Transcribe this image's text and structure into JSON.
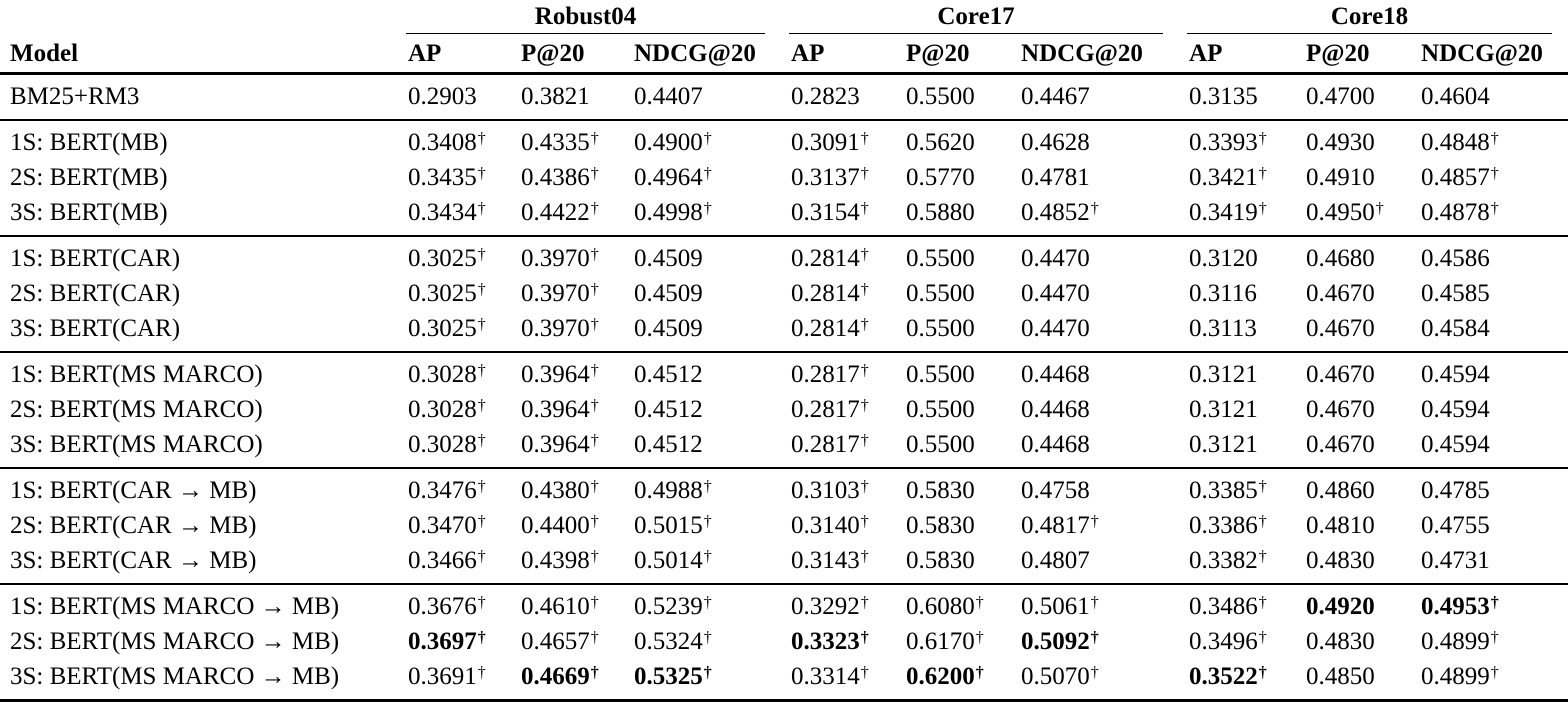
{
  "colors": {
    "background": "#ffffff",
    "text": "#000000",
    "rule": "#000000"
  },
  "table": {
    "model_header": "Model",
    "dagger_symbol": "†",
    "groups": [
      {
        "label": "Robust04"
      },
      {
        "label": "Core17"
      },
      {
        "label": "Core18"
      }
    ],
    "metric_headers": [
      "AP",
      "P@20",
      "NDCG@20"
    ],
    "cell_format": "[value, has_dagger, is_bold]",
    "sections": [
      {
        "rows": [
          {
            "model": "BM25+RM3",
            "cells": [
              [
                "0.2903",
                0,
                0
              ],
              [
                "0.3821",
                0,
                0
              ],
              [
                "0.4407",
                0,
                0
              ],
              [
                "0.2823",
                0,
                0
              ],
              [
                "0.5500",
                0,
                0
              ],
              [
                "0.4467",
                0,
                0
              ],
              [
                "0.3135",
                0,
                0
              ],
              [
                "0.4700",
                0,
                0
              ],
              [
                "0.4604",
                0,
                0
              ]
            ]
          }
        ]
      },
      {
        "rows": [
          {
            "model": "1S: BERT(MB)",
            "cells": [
              [
                "0.3408",
                1,
                0
              ],
              [
                "0.4335",
                1,
                0
              ],
              [
                "0.4900",
                1,
                0
              ],
              [
                "0.3091",
                1,
                0
              ],
              [
                "0.5620",
                0,
                0
              ],
              [
                "0.4628",
                0,
                0
              ],
              [
                "0.3393",
                1,
                0
              ],
              [
                "0.4930",
                0,
                0
              ],
              [
                "0.4848",
                1,
                0
              ]
            ]
          },
          {
            "model": "2S: BERT(MB)",
            "cells": [
              [
                "0.3435",
                1,
                0
              ],
              [
                "0.4386",
                1,
                0
              ],
              [
                "0.4964",
                1,
                0
              ],
              [
                "0.3137",
                1,
                0
              ],
              [
                "0.5770",
                0,
                0
              ],
              [
                "0.4781",
                0,
                0
              ],
              [
                "0.3421",
                1,
                0
              ],
              [
                "0.4910",
                0,
                0
              ],
              [
                "0.4857",
                1,
                0
              ]
            ]
          },
          {
            "model": "3S: BERT(MB)",
            "cells": [
              [
                "0.3434",
                1,
                0
              ],
              [
                "0.4422",
                1,
                0
              ],
              [
                "0.4998",
                1,
                0
              ],
              [
                "0.3154",
                1,
                0
              ],
              [
                "0.5880",
                0,
                0
              ],
              [
                "0.4852",
                1,
                0
              ],
              [
                "0.3419",
                1,
                0
              ],
              [
                "0.4950",
                1,
                0
              ],
              [
                "0.4878",
                1,
                0
              ]
            ]
          }
        ]
      },
      {
        "rows": [
          {
            "model": "1S: BERT(CAR)",
            "cells": [
              [
                "0.3025",
                1,
                0
              ],
              [
                "0.3970",
                1,
                0
              ],
              [
                "0.4509",
                0,
                0
              ],
              [
                "0.2814",
                1,
                0
              ],
              [
                "0.5500",
                0,
                0
              ],
              [
                "0.4470",
                0,
                0
              ],
              [
                "0.3120",
                0,
                0
              ],
              [
                "0.4680",
                0,
                0
              ],
              [
                "0.4586",
                0,
                0
              ]
            ]
          },
          {
            "model": "2S: BERT(CAR)",
            "cells": [
              [
                "0.3025",
                1,
                0
              ],
              [
                "0.3970",
                1,
                0
              ],
              [
                "0.4509",
                0,
                0
              ],
              [
                "0.2814",
                1,
                0
              ],
              [
                "0.5500",
                0,
                0
              ],
              [
                "0.4470",
                0,
                0
              ],
              [
                "0.3116",
                0,
                0
              ],
              [
                "0.4670",
                0,
                0
              ],
              [
                "0.4585",
                0,
                0
              ]
            ]
          },
          {
            "model": "3S: BERT(CAR)",
            "cells": [
              [
                "0.3025",
                1,
                0
              ],
              [
                "0.3970",
                1,
                0
              ],
              [
                "0.4509",
                0,
                0
              ],
              [
                "0.2814",
                1,
                0
              ],
              [
                "0.5500",
                0,
                0
              ],
              [
                "0.4470",
                0,
                0
              ],
              [
                "0.3113",
                0,
                0
              ],
              [
                "0.4670",
                0,
                0
              ],
              [
                "0.4584",
                0,
                0
              ]
            ]
          }
        ]
      },
      {
        "rows": [
          {
            "model": "1S: BERT(MS MARCO)",
            "cells": [
              [
                "0.3028",
                1,
                0
              ],
              [
                "0.3964",
                1,
                0
              ],
              [
                "0.4512",
                0,
                0
              ],
              [
                "0.2817",
                1,
                0
              ],
              [
                "0.5500",
                0,
                0
              ],
              [
                "0.4468",
                0,
                0
              ],
              [
                "0.3121",
                0,
                0
              ],
              [
                "0.4670",
                0,
                0
              ],
              [
                "0.4594",
                0,
                0
              ]
            ]
          },
          {
            "model": "2S: BERT(MS MARCO)",
            "cells": [
              [
                "0.3028",
                1,
                0
              ],
              [
                "0.3964",
                1,
                0
              ],
              [
                "0.4512",
                0,
                0
              ],
              [
                "0.2817",
                1,
                0
              ],
              [
                "0.5500",
                0,
                0
              ],
              [
                "0.4468",
                0,
                0
              ],
              [
                "0.3121",
                0,
                0
              ],
              [
                "0.4670",
                0,
                0
              ],
              [
                "0.4594",
                0,
                0
              ]
            ]
          },
          {
            "model": "3S: BERT(MS MARCO)",
            "cells": [
              [
                "0.3028",
                1,
                0
              ],
              [
                "0.3964",
                1,
                0
              ],
              [
                "0.4512",
                0,
                0
              ],
              [
                "0.2817",
                1,
                0
              ],
              [
                "0.5500",
                0,
                0
              ],
              [
                "0.4468",
                0,
                0
              ],
              [
                "0.3121",
                0,
                0
              ],
              [
                "0.4670",
                0,
                0
              ],
              [
                "0.4594",
                0,
                0
              ]
            ]
          }
        ]
      },
      {
        "rows": [
          {
            "model": "1S: BERT(CAR → MB)",
            "cells": [
              [
                "0.3476",
                1,
                0
              ],
              [
                "0.4380",
                1,
                0
              ],
              [
                "0.4988",
                1,
                0
              ],
              [
                "0.3103",
                1,
                0
              ],
              [
                "0.5830",
                0,
                0
              ],
              [
                "0.4758",
                0,
                0
              ],
              [
                "0.3385",
                1,
                0
              ],
              [
                "0.4860",
                0,
                0
              ],
              [
                "0.4785",
                0,
                0
              ]
            ]
          },
          {
            "model": "2S: BERT(CAR → MB)",
            "cells": [
              [
                "0.3470",
                1,
                0
              ],
              [
                "0.4400",
                1,
                0
              ],
              [
                "0.5015",
                1,
                0
              ],
              [
                "0.3140",
                1,
                0
              ],
              [
                "0.5830",
                0,
                0
              ],
              [
                "0.4817",
                1,
                0
              ],
              [
                "0.3386",
                1,
                0
              ],
              [
                "0.4810",
                0,
                0
              ],
              [
                "0.4755",
                0,
                0
              ]
            ]
          },
          {
            "model": "3S: BERT(CAR → MB)",
            "cells": [
              [
                "0.3466",
                1,
                0
              ],
              [
                "0.4398",
                1,
                0
              ],
              [
                "0.5014",
                1,
                0
              ],
              [
                "0.3143",
                1,
                0
              ],
              [
                "0.5830",
                0,
                0
              ],
              [
                "0.4807",
                0,
                0
              ],
              [
                "0.3382",
                1,
                0
              ],
              [
                "0.4830",
                0,
                0
              ],
              [
                "0.4731",
                0,
                0
              ]
            ]
          }
        ]
      },
      {
        "rows": [
          {
            "model": "1S: BERT(MS MARCO → MB)",
            "cells": [
              [
                "0.3676",
                1,
                0
              ],
              [
                "0.4610",
                1,
                0
              ],
              [
                "0.5239",
                1,
                0
              ],
              [
                "0.3292",
                1,
                0
              ],
              [
                "0.6080",
                1,
                0
              ],
              [
                "0.5061",
                1,
                0
              ],
              [
                "0.3486",
                1,
                0
              ],
              [
                "0.4920",
                0,
                1
              ],
              [
                "0.4953",
                1,
                1
              ]
            ]
          },
          {
            "model": "2S: BERT(MS MARCO → MB)",
            "cells": [
              [
                "0.3697",
                1,
                1
              ],
              [
                "0.4657",
                1,
                0
              ],
              [
                "0.5324",
                1,
                0
              ],
              [
                "0.3323",
                1,
                1
              ],
              [
                "0.6170",
                1,
                0
              ],
              [
                "0.5092",
                1,
                1
              ],
              [
                "0.3496",
                1,
                0
              ],
              [
                "0.4830",
                0,
                0
              ],
              [
                "0.4899",
                1,
                0
              ]
            ]
          },
          {
            "model": "3S: BERT(MS MARCO → MB)",
            "cells": [
              [
                "0.3691",
                1,
                0
              ],
              [
                "0.4669",
                1,
                1
              ],
              [
                "0.5325",
                1,
                1
              ],
              [
                "0.3314",
                1,
                0
              ],
              [
                "0.6200",
                1,
                1
              ],
              [
                "0.5070",
                1,
                0
              ],
              [
                "0.3522",
                1,
                1
              ],
              [
                "0.4850",
                0,
                0
              ],
              [
                "0.4899",
                1,
                0
              ]
            ]
          }
        ]
      }
    ]
  }
}
